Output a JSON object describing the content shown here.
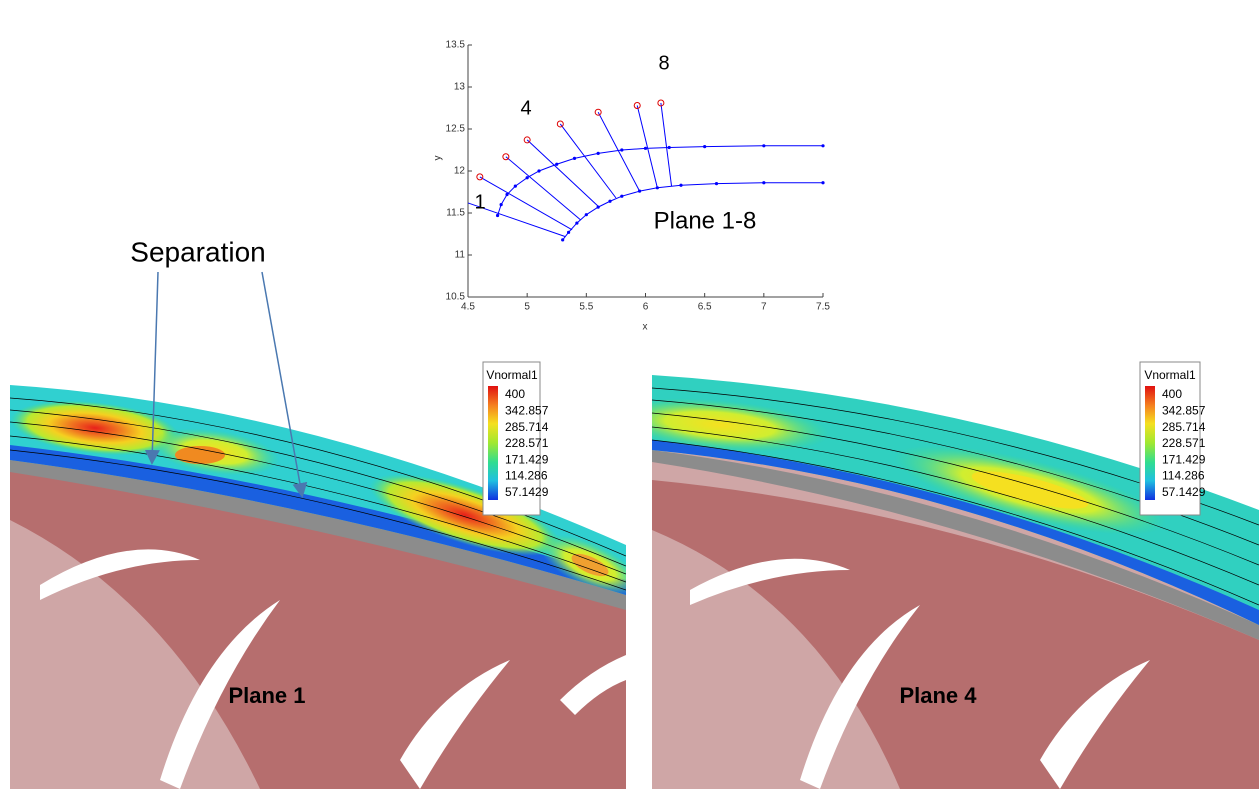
{
  "chart_data": {
    "type": "line",
    "xlabel": "x",
    "ylabel": "y",
    "xlim": [
      4.5,
      7.5
    ],
    "ylim": [
      10.5,
      13.5
    ],
    "xticks": [
      4.5,
      5,
      5.5,
      6,
      6.5,
      7,
      7.5
    ],
    "yticks": [
      10.5,
      11,
      11.5,
      12,
      12.5,
      13,
      13.5
    ],
    "series": [
      {
        "color": "#0000ff",
        "x": [
          4.75,
          4.78,
          4.83,
          4.9,
          5.0,
          5.1,
          5.25,
          5.4,
          5.6,
          5.8,
          6.0,
          6.2,
          6.5,
          7.0,
          7.5
        ],
        "values": [
          11.47,
          11.6,
          11.72,
          11.82,
          11.92,
          12.0,
          12.08,
          12.15,
          12.21,
          12.25,
          12.27,
          12.28,
          12.29,
          12.3,
          12.3
        ]
      },
      {
        "color": "#0000ff",
        "x": [
          5.3,
          5.35,
          5.42,
          5.5,
          5.6,
          5.7,
          5.8,
          5.95,
          6.1,
          6.3,
          6.6,
          7.0,
          7.5
        ],
        "values": [
          11.18,
          11.27,
          11.38,
          11.48,
          11.57,
          11.64,
          11.7,
          11.76,
          11.8,
          11.83,
          11.85,
          11.86,
          11.86
        ]
      }
    ],
    "planes": {
      "color": "#0000ff",
      "marker_color": "#dd0000",
      "lines": [
        {
          "x": [
            4.5,
            5.32
          ],
          "values": [
            11.62,
            11.22
          ]
        },
        {
          "x": [
            4.6,
            5.38
          ],
          "values": [
            11.93,
            11.3
          ]
        },
        {
          "x": [
            4.82,
            5.45
          ],
          "values": [
            12.17,
            11.42
          ]
        },
        {
          "x": [
            5.0,
            5.6
          ],
          "values": [
            12.37,
            11.58
          ]
        },
        {
          "x": [
            5.28,
            5.75
          ],
          "values": [
            12.56,
            11.68
          ]
        },
        {
          "x": [
            5.6,
            5.95
          ],
          "values": [
            12.7,
            11.76
          ]
        },
        {
          "x": [
            5.93,
            6.1
          ],
          "values": [
            12.78,
            11.8
          ]
        },
        {
          "x": [
            6.13,
            6.22
          ],
          "values": [
            12.81,
            11.82
          ]
        }
      ]
    },
    "annotations": [
      "1",
      "4",
      "8",
      "Plane 1-8"
    ]
  },
  "separation_label": "Separation",
  "panels": [
    {
      "label": "Plane 1",
      "legend": {
        "title": "Vnormal1",
        "levels": [
          400,
          342.857,
          285.714,
          228.571,
          171.429,
          114.286,
          57.1429
        ]
      }
    },
    {
      "label": "Plane 4",
      "legend": {
        "title": "Vnormal1",
        "levels": [
          400,
          342.857,
          285.714,
          228.571,
          171.429,
          114.286,
          57.1429
        ]
      }
    }
  ]
}
